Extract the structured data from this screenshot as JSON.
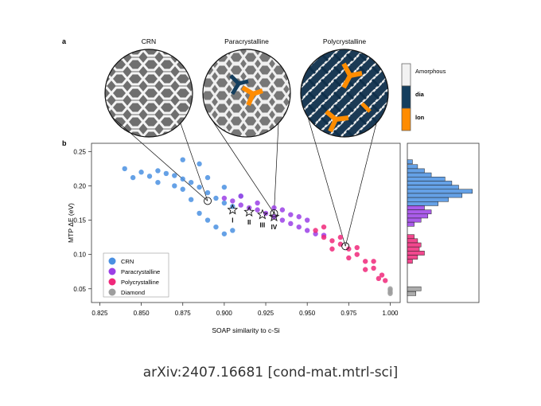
{
  "panels": {
    "a": "a",
    "b": "b",
    "titles": [
      "CRN",
      "Paracrystalline",
      "Polycrystalline"
    ]
  },
  "structure_legend": [
    {
      "label": "Amorphous",
      "color": "#f2f2f2"
    },
    {
      "label": "dia",
      "color": "#143e5e"
    },
    {
      "label": "lon",
      "color": "#ff8c00"
    }
  ],
  "chart_data": {
    "type": "scatter",
    "xlabel": "SOAP similarity to c-Si",
    "ylabel": "MTP ΔE (eV)",
    "xlim": [
      0.82,
      1.006
    ],
    "ylim": [
      0.03,
      0.262
    ],
    "xticks": [
      "0.825",
      "0.850",
      "0.875",
      "0.900",
      "0.925",
      "0.950",
      "0.975",
      "1.000"
    ],
    "yticks": [
      "0.05",
      "0.10",
      "0.15",
      "0.20",
      "0.25"
    ],
    "grid": false,
    "legend_position": "bottom-left",
    "series": [
      {
        "name": "CRN",
        "color": "#4a90e2",
        "points": [
          [
            0.84,
            0.225
          ],
          [
            0.845,
            0.212
          ],
          [
            0.85,
            0.22
          ],
          [
            0.855,
            0.214
          ],
          [
            0.86,
            0.222
          ],
          [
            0.865,
            0.218
          ],
          [
            0.87,
            0.215
          ],
          [
            0.875,
            0.21
          ],
          [
            0.88,
            0.205
          ],
          [
            0.885,
            0.198
          ],
          [
            0.89,
            0.19
          ],
          [
            0.895,
            0.182
          ],
          [
            0.9,
            0.175
          ],
          [
            0.905,
            0.17
          ],
          [
            0.87,
            0.2
          ],
          [
            0.86,
            0.205
          ],
          [
            0.875,
            0.195
          ],
          [
            0.88,
            0.18
          ],
          [
            0.885,
            0.16
          ],
          [
            0.89,
            0.15
          ],
          [
            0.895,
            0.14
          ],
          [
            0.9,
            0.13
          ],
          [
            0.905,
            0.135
          ],
          [
            0.885,
            0.232
          ],
          [
            0.875,
            0.238
          ],
          [
            0.89,
            0.212
          ],
          [
            0.9,
            0.198
          ],
          [
            0.91,
            0.185
          ]
        ]
      },
      {
        "name": "Paracrystalline",
        "color": "#9b3fe6",
        "points": [
          [
            0.9,
            0.182
          ],
          [
            0.905,
            0.178
          ],
          [
            0.91,
            0.172
          ],
          [
            0.915,
            0.168
          ],
          [
            0.92,
            0.165
          ],
          [
            0.925,
            0.16
          ],
          [
            0.93,
            0.155
          ],
          [
            0.935,
            0.15
          ],
          [
            0.94,
            0.145
          ],
          [
            0.945,
            0.14
          ],
          [
            0.95,
            0.135
          ],
          [
            0.955,
            0.13
          ],
          [
            0.96,
            0.128
          ],
          [
            0.91,
            0.185
          ],
          [
            0.92,
            0.175
          ],
          [
            0.93,
            0.168
          ],
          [
            0.94,
            0.158
          ],
          [
            0.95,
            0.15
          ],
          [
            0.935,
            0.165
          ],
          [
            0.945,
            0.155
          ]
        ]
      },
      {
        "name": "Polycrystalline",
        "color": "#f0287a",
        "points": [
          [
            0.955,
            0.135
          ],
          [
            0.96,
            0.125
          ],
          [
            0.965,
            0.12
          ],
          [
            0.97,
            0.115
          ],
          [
            0.975,
            0.108
          ],
          [
            0.98,
            0.1
          ],
          [
            0.985,
            0.09
          ],
          [
            0.99,
            0.08
          ],
          [
            0.995,
            0.07
          ],
          [
            0.997,
            0.062
          ],
          [
            0.96,
            0.14
          ],
          [
            0.97,
            0.125
          ],
          [
            0.98,
            0.11
          ],
          [
            0.99,
            0.09
          ],
          [
            0.975,
            0.095
          ],
          [
            0.985,
            0.078
          ],
          [
            0.965,
            0.108
          ],
          [
            0.993,
            0.065
          ]
        ]
      },
      {
        "name": "Diamond",
        "color": "#9e9e9e",
        "points": [
          [
            1.0,
            0.048
          ],
          [
            1.0,
            0.045
          ],
          [
            1.0,
            0.05
          ],
          [
            1.0,
            0.043
          ]
        ]
      }
    ],
    "markers": [
      {
        "label": "I",
        "x": 0.905,
        "y": 0.165
      },
      {
        "label": "II",
        "x": 0.915,
        "y": 0.162
      },
      {
        "label": "III",
        "x": 0.923,
        "y": 0.158
      },
      {
        "label": "IV",
        "x": 0.93,
        "y": 0.155
      }
    ],
    "highlight_points": [
      {
        "x": 0.89,
        "y": 0.178
      },
      {
        "x": 0.93,
        "y": 0.16
      },
      {
        "x": 0.973,
        "y": 0.112
      }
    ],
    "histogram": {
      "ylim": [
        0.03,
        0.262
      ],
      "bins": [
        {
          "y": 0.235,
          "count": 3,
          "color": "#4a90e2"
        },
        {
          "y": 0.228,
          "count": 6,
          "color": "#4a90e2"
        },
        {
          "y": 0.222,
          "count": 10,
          "color": "#4a90e2"
        },
        {
          "y": 0.216,
          "count": 14,
          "color": "#4a90e2"
        },
        {
          "y": 0.21,
          "count": 22,
          "color": "#4a90e2"
        },
        {
          "y": 0.204,
          "count": 26,
          "color": "#4a90e2"
        },
        {
          "y": 0.198,
          "count": 30,
          "color": "#4a90e2"
        },
        {
          "y": 0.192,
          "count": 38,
          "color": "#4a90e2"
        },
        {
          "y": 0.186,
          "count": 32,
          "color": "#4a90e2"
        },
        {
          "y": 0.18,
          "count": 24,
          "color": "#4a90e2"
        },
        {
          "y": 0.174,
          "count": 18,
          "color": "#4a90e2"
        },
        {
          "y": 0.168,
          "count": 10,
          "color": "#9b3fe6"
        },
        {
          "y": 0.162,
          "count": 14,
          "color": "#9b3fe6"
        },
        {
          "y": 0.156,
          "count": 12,
          "color": "#9b3fe6"
        },
        {
          "y": 0.15,
          "count": 8,
          "color": "#9b3fe6"
        },
        {
          "y": 0.144,
          "count": 4,
          "color": "#9b3fe6"
        },
        {
          "y": 0.126,
          "count": 4,
          "color": "#f0287a"
        },
        {
          "y": 0.12,
          "count": 6,
          "color": "#f0287a"
        },
        {
          "y": 0.114,
          "count": 8,
          "color": "#f0287a"
        },
        {
          "y": 0.108,
          "count": 7,
          "color": "#f0287a"
        },
        {
          "y": 0.102,
          "count": 10,
          "color": "#f0287a"
        },
        {
          "y": 0.096,
          "count": 6,
          "color": "#f0287a"
        },
        {
          "y": 0.09,
          "count": 3,
          "color": "#f0287a"
        },
        {
          "y": 0.05,
          "count": 8,
          "color": "#9e9e9e"
        },
        {
          "y": 0.043,
          "count": 5,
          "color": "#9e9e9e"
        }
      ]
    }
  },
  "caption": "arXiv:2407.16681 [cond-mat.mtrl-sci]"
}
